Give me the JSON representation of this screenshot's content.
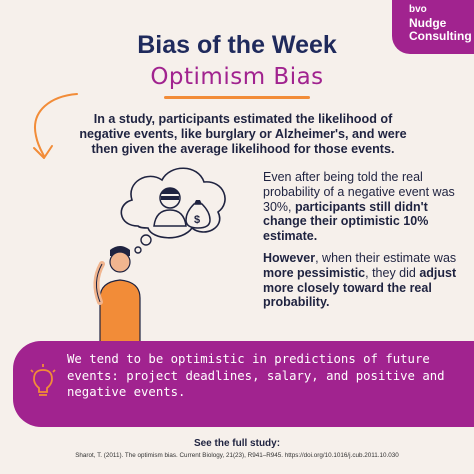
{
  "logo": {
    "small": "bvo",
    "line1": "Nudge",
    "line2": "Consulting"
  },
  "header": {
    "title": "Bias of the Week",
    "subtitle": "Optimism Bias"
  },
  "intro": "In a study, participants estimated the likelihood of negative events, like burglary or Alzheimer's, and were then given the average likelihood for those events.",
  "finding1": {
    "lead": "Even after being told the real probability of a negative event was 30%, ",
    "bold": "participants still didn't change their optimistic 10% estimate."
  },
  "finding2": {
    "b1": "However",
    "t1": ", when their estimate was ",
    "b2": "more pessimistic",
    "t2": ", they did ",
    "b3": "adjust more closely toward the real probability."
  },
  "banner": {
    "text": "We tend to be optimistic in predictions of future events: project deadlines, salary, and positive and negative events."
  },
  "citation": {
    "heading": "See the full study:",
    "text": "Sharot, T. (2011). The optimism bias. Current Biology, 21(23), R941–R945. https://doi.org/10.1016/j.cub.2011.10.030"
  },
  "colors": {
    "accent": "#a1238f",
    "orange": "#f28c38",
    "navy": "#1f2a5c",
    "background": "#f6f0eb"
  },
  "icons": [
    "arrow-icon",
    "thought-bubble-icon",
    "burglar-icon",
    "money-bag-icon",
    "thinking-person-icon",
    "lightbulb-icon"
  ]
}
